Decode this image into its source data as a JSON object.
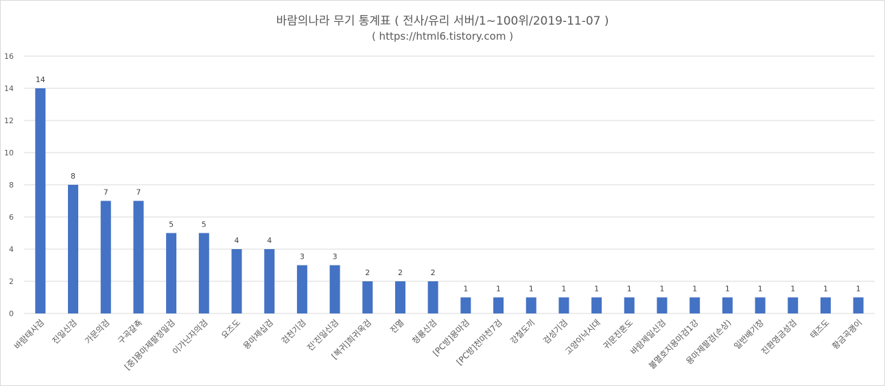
{
  "chart_data": {
    "type": "bar",
    "title": "바람의나라 무기 통계표 ( 전사/유리 서버/1~100위/2019-11-07 )",
    "subtitle": "( https://html6.tistory.com )",
    "categories": [
      "바람태사검",
      "진일신검",
      "가문의검",
      "구곡갈쵹",
      "[중]용마제팔정일검",
      "이가닌자의검",
      "요즈도",
      "용마제십검",
      "검천기검",
      "진'진일신검",
      "[복귀]희귀옥검",
      "진멸",
      "청룡신검",
      "[PC방]용마검",
      "[PC방]천마천7검",
      "강철도끼",
      "검성기검",
      "고양이낙시대",
      "귀문진혼도",
      "바람제일신검",
      "불멸호지용마검1강",
      "용마제팔검(손상)",
      "일반배기창",
      "진환영금성검",
      "태즈도",
      "황금곡괭이"
    ],
    "values": [
      14,
      8,
      7,
      7,
      5,
      5,
      4,
      4,
      3,
      3,
      2,
      2,
      2,
      1,
      1,
      1,
      1,
      1,
      1,
      1,
      1,
      1,
      1,
      1,
      1,
      1
    ],
    "ylim": [
      0,
      16
    ],
    "yticks": [
      0,
      2,
      4,
      6,
      8,
      10,
      12,
      14,
      16
    ],
    "xlabel": "",
    "ylabel": "",
    "grid": true,
    "data_labels": true,
    "bar_color": "#4472c4",
    "grid_color": "#d9d9d9",
    "text_color": "#595959"
  }
}
